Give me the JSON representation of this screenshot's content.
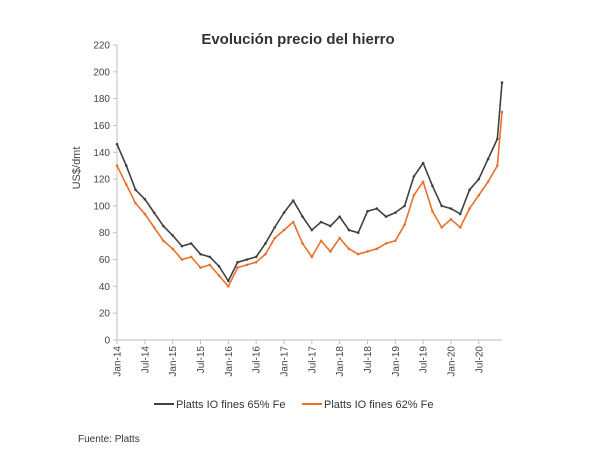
{
  "chart_data": {
    "type": "line",
    "title": "Evolución precio del hierro",
    "ylabel": "US$/dmt",
    "xlabel": "",
    "ylim": [
      0,
      220
    ],
    "yticks": [
      0,
      20,
      40,
      60,
      80,
      100,
      120,
      140,
      160,
      180,
      200,
      220
    ],
    "xlim": [
      "2014-01",
      "2020-12"
    ],
    "xticks": [
      "Jan-14",
      "Jul-14",
      "Jan-15",
      "Jul-15",
      "Jan-16",
      "Jul-16",
      "Jan-17",
      "Jul-17",
      "Jan-18",
      "Jul-18",
      "Jan-19",
      "Jul-19",
      "Jan-20",
      "Jul-20"
    ],
    "grid": false,
    "legend": "bottom",
    "series": [
      {
        "name": "Platts IO fines 65% Fe",
        "color": "#404040",
        "x": [
          "2014-01",
          "2014-03",
          "2014-05",
          "2014-07",
          "2014-09",
          "2014-11",
          "2015-01",
          "2015-03",
          "2015-05",
          "2015-07",
          "2015-09",
          "2015-11",
          "2016-01",
          "2016-03",
          "2016-05",
          "2016-07",
          "2016-09",
          "2016-11",
          "2017-01",
          "2017-03",
          "2017-05",
          "2017-07",
          "2017-09",
          "2017-11",
          "2018-01",
          "2018-03",
          "2018-05",
          "2018-07",
          "2018-09",
          "2018-11",
          "2019-01",
          "2019-03",
          "2019-05",
          "2019-07",
          "2019-09",
          "2019-11",
          "2020-01",
          "2020-03",
          "2020-05",
          "2020-07",
          "2020-09",
          "2020-11",
          "2020-12"
        ],
        "y": [
          146,
          130,
          112,
          105,
          95,
          85,
          78,
          70,
          72,
          64,
          62,
          55,
          44,
          58,
          60,
          62,
          72,
          84,
          95,
          104,
          92,
          82,
          88,
          85,
          92,
          82,
          80,
          96,
          98,
          92,
          95,
          100,
          122,
          132,
          115,
          100,
          98,
          94,
          112,
          120,
          135,
          150,
          192
        ]
      },
      {
        "name": "Platts IO fines 62% Fe",
        "color": "#e8702a",
        "x": [
          "2014-01",
          "2014-03",
          "2014-05",
          "2014-07",
          "2014-09",
          "2014-11",
          "2015-01",
          "2015-03",
          "2015-05",
          "2015-07",
          "2015-09",
          "2015-11",
          "2016-01",
          "2016-03",
          "2016-05",
          "2016-07",
          "2016-09",
          "2016-11",
          "2017-01",
          "2017-03",
          "2017-05",
          "2017-07",
          "2017-09",
          "2017-11",
          "2018-01",
          "2018-03",
          "2018-05",
          "2018-07",
          "2018-09",
          "2018-11",
          "2019-01",
          "2019-03",
          "2019-05",
          "2019-07",
          "2019-09",
          "2019-11",
          "2020-01",
          "2020-03",
          "2020-05",
          "2020-07",
          "2020-09",
          "2020-11",
          "2020-12"
        ],
        "y": [
          130,
          116,
          102,
          94,
          84,
          74,
          68,
          60,
          62,
          54,
          56,
          48,
          40,
          54,
          56,
          58,
          64,
          76,
          82,
          88,
          72,
          62,
          74,
          66,
          76,
          68,
          64,
          66,
          68,
          72,
          74,
          86,
          108,
          118,
          96,
          84,
          90,
          84,
          98,
          108,
          118,
          130,
          170
        ]
      }
    ]
  },
  "source_note": "Fuente: Platts"
}
